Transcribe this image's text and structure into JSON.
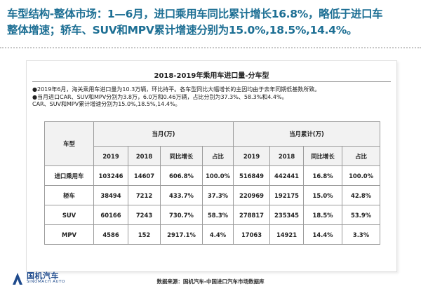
{
  "headline": {
    "line1": "车型结构-整体市场：1—6月，进口乘用车同比累计增长16.8%，略低于进口车",
    "line2": "整体增速；轿车、SUV和MPV累计增速分别为15.0%,18.5%,14.4%。"
  },
  "table_title": "2018-2019年乘用车进口量-分车型",
  "notes": [
    "●2019年6月，海关乘用车进口量为10.3万辆，环比持平。各车型同比大幅增长的主因均由于去年同期低基数所致。",
    "●当月进口CAR、SUV和MPV分别为3.8万，6.0万和0.46万辆，占比分别为37.3%、58.3%和4.4%。",
    "CAR、SUV和MPV累计增速分别为15.0%,18.5%,14.4%。"
  ],
  "table": {
    "row_header": "车型",
    "group_current": "当月(万)",
    "group_cumulative": "当月累计(万)",
    "subheaders": [
      "2019",
      "2018",
      "同比增长",
      "占比",
      "2019",
      "2018",
      "同比增长",
      "占比"
    ],
    "rows": [
      {
        "label": "进口乘用车",
        "cells": [
          "103246",
          "14607",
          "606.8%",
          "100.0%",
          "516849",
          "442441",
          "16.8%",
          "100.0%"
        ]
      },
      {
        "label": "轿车",
        "cells": [
          "38494",
          "7212",
          "433.7%",
          "37.3%",
          "220969",
          "192175",
          "15.0%",
          "42.8%"
        ]
      },
      {
        "label": "SUV",
        "cells": [
          "60166",
          "7243",
          "730.7%",
          "58.3%",
          "278817",
          "235345",
          "18.5%",
          "53.9%"
        ]
      },
      {
        "label": "MPV",
        "cells": [
          "4586",
          "152",
          "2917.1%",
          "4.4%",
          "17063",
          "14921",
          "14.4%",
          "3.3%"
        ]
      }
    ]
  },
  "logo": {
    "name": "国机汽车",
    "sub": "SINOMACH AUTO"
  },
  "source": "数据来源：国机汽车-中国进口汽车市场数据库",
  "colors": {
    "headline": "#1d6f94",
    "logo": "#1e4a8c"
  }
}
